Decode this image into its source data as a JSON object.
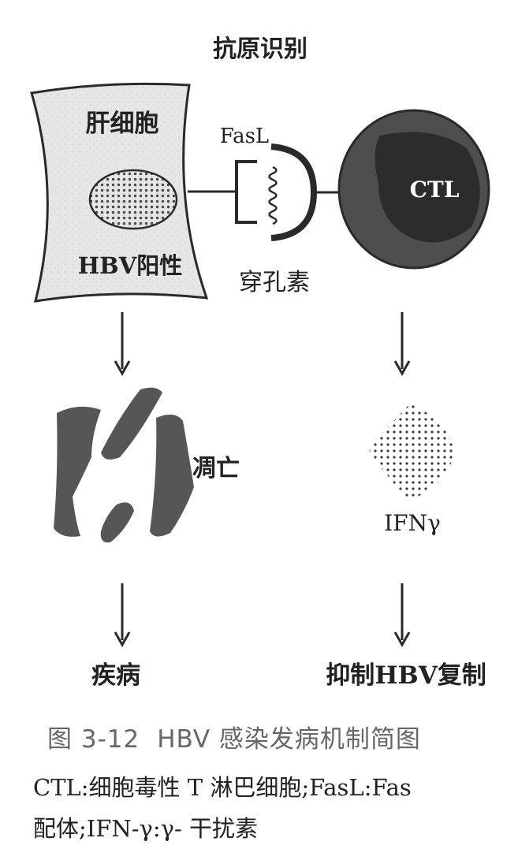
{
  "diagram": {
    "title": "抗原识别",
    "hepatocyte_label": "肝细胞",
    "hbv_label": "HBV阳性",
    "fasl_label": "FasL",
    "perforin_label": "穿孔素",
    "ctl_label": "CTL",
    "apoptosis_label": "凋亡",
    "ifn_label": "IFNγ",
    "disease_label": "疾病",
    "inhibit_label": "抑制HBV复制"
  },
  "caption": {
    "figure_number": "图 3-12",
    "figure_title": "HBV 感染发病机制简图",
    "note_line1": "CTL:细胞毒性 T 淋巴细胞;FasL:Fas",
    "note_line2": "配体;IFN-γ:γ- 干扰素"
  },
  "colors": {
    "cell_fill": "#e6e6e6",
    "ctl_outer": "#4e4e4e",
    "ctl_inner": "#2c2c2c",
    "fragment": "#565656"
  }
}
